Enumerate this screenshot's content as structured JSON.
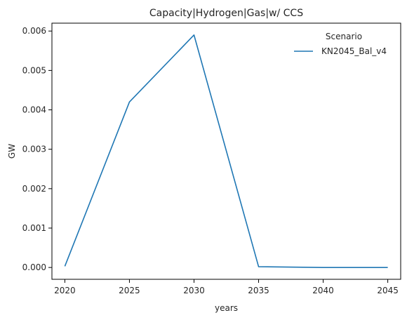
{
  "chart_data": {
    "type": "line",
    "title": "Capacity|Hydrogen|Gas|w/ CCS",
    "xlabel": "years",
    "ylabel": "GW",
    "x": [
      2020,
      2025,
      2030,
      2035,
      2040,
      2045
    ],
    "x_ticks": [
      "2020",
      "2025",
      "2030",
      "2035",
      "2040",
      "2045"
    ],
    "y_ticks": [
      "0.000",
      "0.001",
      "0.002",
      "0.003",
      "0.004",
      "0.005",
      "0.006"
    ],
    "xlim": [
      2019,
      2046
    ],
    "ylim": [
      -0.0003,
      0.0062
    ],
    "grid": false,
    "legend": {
      "title": "Scenario",
      "placement": "top-right"
    },
    "series": [
      {
        "name": "KN2045_Bal_v4",
        "color": "#1f77b4",
        "values": [
          3e-05,
          0.0042,
          0.0059,
          2e-05,
          0.0,
          0.0
        ]
      }
    ]
  }
}
